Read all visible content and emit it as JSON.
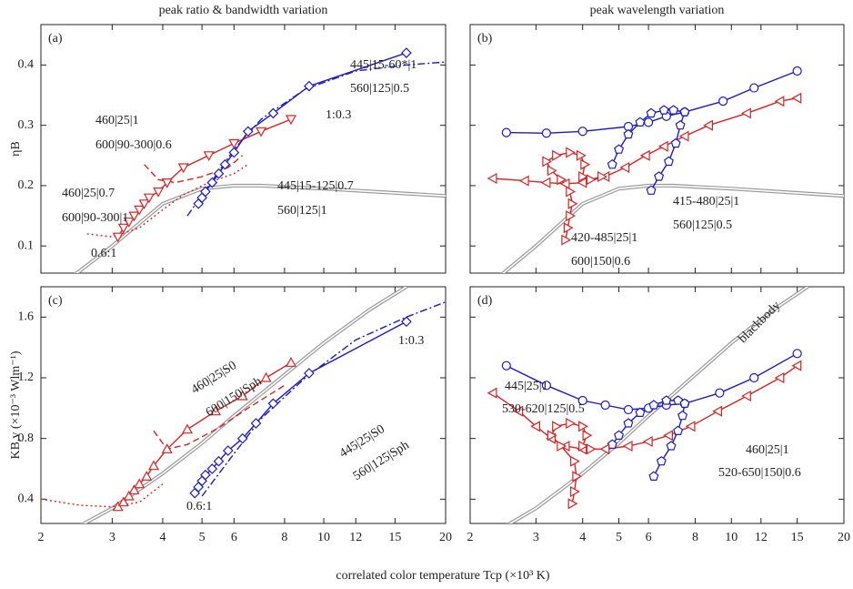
{
  "chart_data": [
    {
      "type": "line",
      "title": "peak ratio & bandwidth variation",
      "label": "(a)",
      "ylabel": "ηB",
      "xscale": "log",
      "xlim": [
        2,
        20
      ],
      "xticks": [
        2,
        3,
        4,
        5,
        6,
        8,
        10,
        12,
        15,
        20
      ],
      "ylim": [
        0.055,
        0.467
      ],
      "yticks": [
        0.1,
        0.2,
        0.3,
        0.4
      ],
      "series": [
        {
          "color": "#999999",
          "line": "double",
          "marker": "none",
          "x": [
            2.4,
            3,
            4,
            5,
            6,
            7,
            8,
            10,
            15,
            20
          ],
          "values": [
            0.05,
            0.1,
            0.17,
            0.195,
            0.2,
            0.2,
            0.198,
            0.195,
            0.188,
            0.183
          ]
        },
        {
          "color": "#e02020",
          "line": "solid",
          "marker": "triangle-down",
          "x": [
            3.1,
            3.2,
            3.3,
            3.4,
            3.5,
            3.6,
            3.7,
            3.9,
            4.1,
            4.5,
            5.2,
            6,
            7,
            8.3
          ],
          "values": [
            0.115,
            0.13,
            0.14,
            0.15,
            0.16,
            0.17,
            0.18,
            0.19,
            0.205,
            0.23,
            0.25,
            0.27,
            0.29,
            0.31
          ]
        },
        {
          "color": "#e02020",
          "line": "dashed",
          "marker": "none",
          "x": [
            3.6,
            3.9,
            4.3,
            5,
            5.8,
            6.3
          ],
          "values": [
            0.235,
            0.21,
            0.205,
            0.215,
            0.23,
            0.25
          ]
        },
        {
          "color": "#e02020",
          "line": "dotted",
          "marker": "none",
          "x": [
            2.6,
            3,
            3.5,
            4,
            4.5,
            5.2,
            6,
            6.5
          ],
          "values": [
            0.12,
            0.115,
            0.13,
            0.16,
            0.185,
            0.205,
            0.22,
            0.235
          ]
        },
        {
          "color": "#1a1ad0",
          "line": "solid",
          "marker": "diamond",
          "x": [
            4.9,
            5,
            5.1,
            5.3,
            5.5,
            5.7,
            6,
            6.5,
            7.5,
            9.2,
            16
          ],
          "values": [
            0.17,
            0.18,
            0.19,
            0.205,
            0.22,
            0.235,
            0.255,
            0.29,
            0.32,
            0.365,
            0.42
          ]
        },
        {
          "color": "#1a1ad0",
          "line": "dashdot",
          "marker": "none",
          "x": [
            4.6,
            5.2,
            6,
            7,
            9,
            12,
            16,
            20
          ],
          "values": [
            0.15,
            0.2,
            0.26,
            0.31,
            0.36,
            0.39,
            0.4,
            0.405
          ]
        }
      ],
      "annotations": [
        "1:0.3",
        "460|25|1",
        "600|90-300|0.6",
        "460|25|0.7",
        "600|90-300|1",
        "0.6:1",
        "445|15-60*|1",
        "560|125|0.5",
        "445|15-125|0.7",
        "560|125|1"
      ]
    },
    {
      "type": "line",
      "title": "peak wavelength variation",
      "label": "(b)",
      "xscale": "log",
      "xlim": [
        2,
        20
      ],
      "xticks": [
        2,
        3,
        4,
        5,
        6,
        8,
        10,
        12,
        15,
        20
      ],
      "ylim": [
        0.055,
        0.467
      ],
      "yticks": [
        0.1,
        0.2,
        0.3,
        0.4
      ],
      "series": [
        {
          "color": "#999999",
          "line": "double",
          "marker": "none",
          "x": [
            2.4,
            3,
            4,
            5,
            6,
            7,
            8,
            10,
            15,
            20
          ],
          "values": [
            0.05,
            0.1,
            0.17,
            0.195,
            0.2,
            0.2,
            0.198,
            0.195,
            0.188,
            0.183
          ]
        },
        {
          "color": "#1a1ad0",
          "line": "solid",
          "marker": "circle",
          "x": [
            2.5,
            3.2,
            4,
            5.3,
            6,
            6.7,
            7.5,
            9.5,
            11.5,
            15
          ],
          "values": [
            0.288,
            0.287,
            0.29,
            0.298,
            0.305,
            0.315,
            0.322,
            0.34,
            0.362,
            0.39
          ]
        },
        {
          "color": "#1a1ad0",
          "line": "solid",
          "marker": "pentagon",
          "x": [
            4.8,
            5,
            5.3,
            5.7,
            6.1,
            6.6,
            7,
            7.5,
            7.3,
            7.1,
            6.8,
            6.4,
            6.1
          ],
          "values": [
            0.235,
            0.26,
            0.285,
            0.305,
            0.32,
            0.325,
            0.325,
            0.322,
            0.3,
            0.27,
            0.24,
            0.215,
            0.192
          ]
        },
        {
          "color": "#e02020",
          "line": "solid",
          "marker": "triangle-left",
          "x": [
            2.3,
            2.8,
            3.2,
            3.6,
            4,
            4.6,
            5.2,
            5.9,
            6.6,
            7.5,
            8.7,
            11,
            13.5,
            15
          ],
          "values": [
            0.212,
            0.208,
            0.205,
            0.203,
            0.205,
            0.215,
            0.23,
            0.25,
            0.265,
            0.282,
            0.3,
            0.32,
            0.34,
            0.345
          ]
        },
        {
          "color": "#e02020",
          "line": "solid",
          "marker": "triangle-right",
          "x": [
            3.6,
            3.65,
            3.7,
            3.75,
            3.7,
            3.5,
            3.3,
            3.2,
            3.4,
            3.7,
            3.95,
            4.05,
            4,
            4.2,
            4.5
          ],
          "values": [
            0.11,
            0.13,
            0.15,
            0.17,
            0.19,
            0.21,
            0.225,
            0.24,
            0.25,
            0.255,
            0.25,
            0.235,
            0.215,
            0.21,
            0.215
          ]
        }
      ],
      "annotations": [
        "415-480|25|1",
        "560|125|0.5",
        "420-485|25|1",
        "600|150|0.6"
      ]
    },
    {
      "type": "line",
      "label": "(c)",
      "ylabel": "KB,v (×10⁻³ Wlm⁻¹)",
      "xlabel": "correlated color temperature Tcp (×10³ K)",
      "xscale": "log",
      "xlim": [
        2,
        20
      ],
      "xticks": [
        2,
        3,
        4,
        5,
        6,
        8,
        10,
        12,
        15,
        20
      ],
      "ylim": [
        0.24,
        1.8
      ],
      "yticks": [
        0.4,
        0.8,
        1.2,
        1.6
      ],
      "series": [
        {
          "color": "#999999",
          "line": "double",
          "marker": "none",
          "x": [
            2.4,
            3,
            4,
            5,
            6,
            8,
            10,
            13,
            16
          ],
          "values": [
            0.2,
            0.34,
            0.57,
            0.77,
            0.95,
            1.22,
            1.43,
            1.65,
            1.8
          ]
        },
        {
          "color": "#e02020",
          "line": "solid",
          "marker": "triangle-up",
          "x": [
            3.1,
            3.2,
            3.3,
            3.4,
            3.5,
            3.65,
            3.8,
            4.1,
            4.6,
            5.4,
            6.3,
            7.2,
            8.3
          ],
          "values": [
            0.35,
            0.38,
            0.42,
            0.46,
            0.5,
            0.55,
            0.62,
            0.73,
            0.86,
            0.98,
            1.08,
            1.2,
            1.3
          ]
        },
        {
          "color": "#e02020",
          "line": "dashed",
          "marker": "none",
          "x": [
            3.8,
            4.1,
            4.6,
            5.5,
            6.5,
            8
          ],
          "values": [
            0.85,
            0.73,
            0.76,
            0.87,
            1,
            1.15
          ]
        },
        {
          "color": "#e02020",
          "line": "dotted",
          "marker": "none",
          "x": [
            2,
            2.5,
            3,
            3.5,
            4
          ],
          "values": [
            0.4,
            0.36,
            0.35,
            0.38,
            0.5
          ]
        },
        {
          "color": "#1a1ad0",
          "line": "solid",
          "marker": "diamond",
          "x": [
            4.8,
            4.9,
            5,
            5.1,
            5.3,
            5.5,
            5.8,
            6.3,
            6.8,
            7.5,
            9.2,
            16
          ],
          "values": [
            0.44,
            0.48,
            0.52,
            0.56,
            0.6,
            0.65,
            0.72,
            0.8,
            0.9,
            1.03,
            1.23,
            1.57
          ]
        },
        {
          "color": "#1a1ad0",
          "line": "dashdot",
          "marker": "none",
          "x": [
            5,
            6,
            7,
            9,
            12,
            16,
            20
          ],
          "values": [
            0.42,
            0.7,
            0.93,
            1.2,
            1.45,
            1.6,
            1.7
          ]
        }
      ],
      "annotations": [
        "460|25|S0",
        "600|150|Sph",
        "445|25|S0",
        "560|125|Sph",
        "1:0.3",
        "0.6:1"
      ]
    },
    {
      "type": "line",
      "label": "(d)",
      "xscale": "log",
      "xlim": [
        2,
        20
      ],
      "xticks": [
        2,
        3,
        4,
        5,
        6,
        8,
        10,
        12,
        15,
        20
      ],
      "ylim": [
        0.24,
        1.8
      ],
      "yticks": [
        0.4,
        0.8,
        1.2,
        1.6
      ],
      "series": [
        {
          "color": "#999999",
          "line": "double",
          "marker": "none",
          "x": [
            2.4,
            3,
            4,
            5,
            6,
            8,
            10,
            13,
            16
          ],
          "values": [
            0.2,
            0.34,
            0.57,
            0.77,
            0.95,
            1.22,
            1.43,
            1.65,
            1.8
          ]
        },
        {
          "color": "#1a1ad0",
          "line": "solid",
          "marker": "circle",
          "x": [
            2.5,
            3.2,
            4,
            4.6,
            5.3,
            6,
            6.7,
            7.5,
            9.3,
            11.5,
            15
          ],
          "values": [
            1.28,
            1.15,
            1.05,
            1.02,
            0.99,
            1,
            1.02,
            1.03,
            1.1,
            1.2,
            1.36
          ]
        },
        {
          "color": "#1a1ad0",
          "line": "solid",
          "marker": "pentagon",
          "x": [
            4.8,
            5,
            5.3,
            5.7,
            6.2,
            6.7,
            7.2,
            7.5,
            7.4,
            7.2,
            6.9,
            6.5,
            6.2
          ],
          "values": [
            0.76,
            0.82,
            0.9,
            0.97,
            1.02,
            1.05,
            1.05,
            1.03,
            0.95,
            0.85,
            0.75,
            0.65,
            0.55
          ]
        },
        {
          "color": "#e02020",
          "line": "solid",
          "marker": "triangle-left",
          "x": [
            2.3,
            2.7,
            3,
            3.3,
            3.6,
            4,
            4.6,
            5.3,
            6,
            6.8,
            7.8,
            9.2,
            11,
            13.5,
            15
          ],
          "values": [
            1.1,
            0.98,
            0.88,
            0.8,
            0.75,
            0.73,
            0.73,
            0.75,
            0.78,
            0.82,
            0.88,
            0.98,
            1.08,
            1.2,
            1.28
          ]
        },
        {
          "color": "#e02020",
          "line": "solid",
          "marker": "triangle-right",
          "x": [
            3.75,
            3.8,
            3.85,
            3.8,
            3.5,
            3.3,
            3.4,
            3.7,
            4,
            4.1,
            4,
            4.2
          ],
          "values": [
            0.37,
            0.45,
            0.55,
            0.65,
            0.75,
            0.82,
            0.88,
            0.9,
            0.88,
            0.82,
            0.75,
            0.73
          ]
        }
      ],
      "annotations": [
        "blackbody",
        "445|25|1",
        "530-620|125|0.5",
        "460|25|1",
        "520-650|150|0.6"
      ]
    }
  ]
}
